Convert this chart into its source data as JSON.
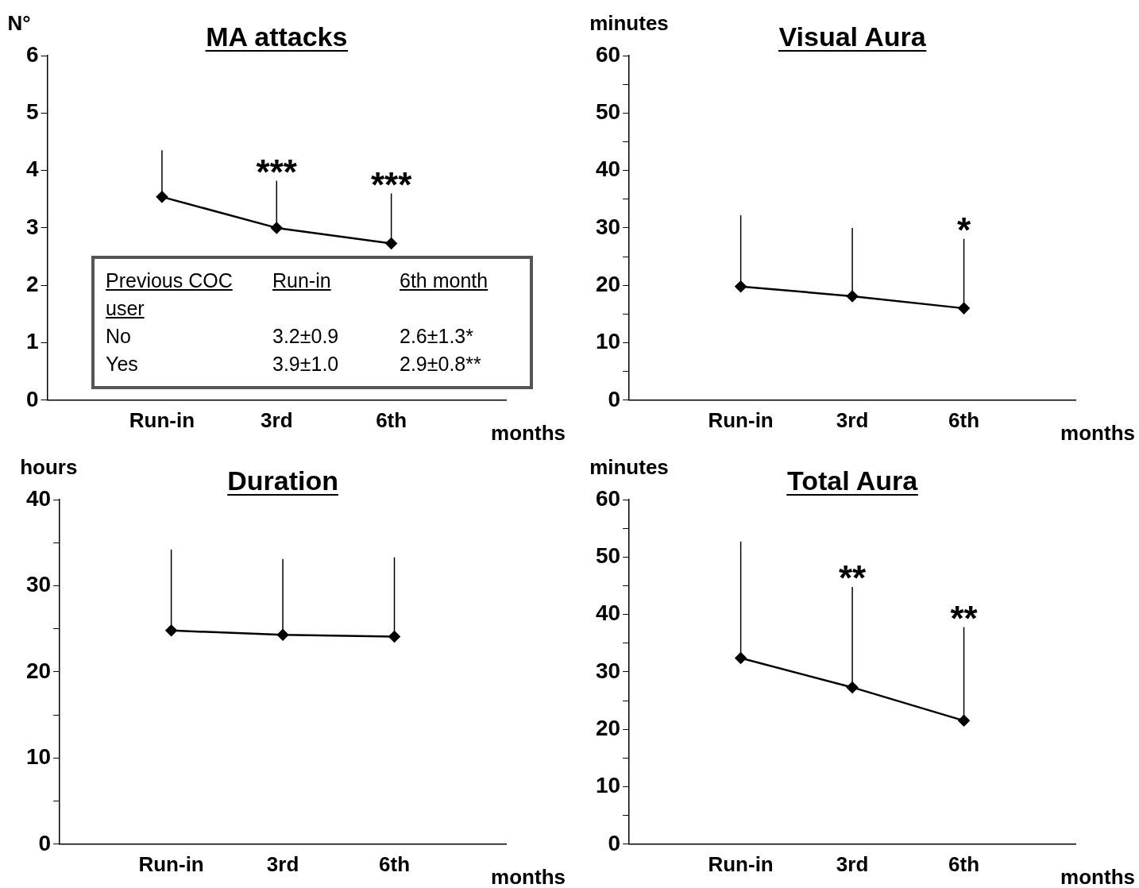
{
  "chart_data": [
    {
      "type": "line",
      "title": "MA attacks",
      "ylabel": "N°",
      "xlabel": "months",
      "categories": [
        "Run-in",
        "3rd",
        "6th"
      ],
      "series": [
        {
          "color": "#000000",
          "values": [
            3.54,
            3.0,
            2.73
          ],
          "errors": [
            [
              3.54,
              4.35
            ],
            [
              3.0,
              3.82
            ],
            [
              2.73,
              3.6
            ]
          ]
        }
      ],
      "ylim": [
        0,
        6
      ],
      "yticks": [
        0,
        1,
        2,
        3,
        4,
        5,
        6
      ],
      "grid": false,
      "legend": false,
      "marker": "diamond",
      "line_style": "solid",
      "annotations": [
        {
          "text": "***",
          "x": "3rd",
          "y": 3.82
        },
        {
          "text": "***",
          "x": "6th",
          "y": 3.6
        },
        "Previous COC user",
        "Run-in",
        "6th month",
        "No",
        "3.2±0.9",
        "2.6±1.3*",
        "Yes",
        "3.9±1.0",
        "2.9±0.8**"
      ]
    },
    {
      "type": "line",
      "title": "Visual Aura",
      "ylabel": "minutes",
      "xlabel": "months",
      "categories": [
        "Run-in",
        "3rd",
        "6th"
      ],
      "series": [
        {
          "color": "#000000",
          "values": [
            19.8,
            18.1,
            16.0
          ],
          "errors": [
            [
              19.8,
              32.2
            ],
            [
              18.1,
              30.0
            ],
            [
              16.0,
              28.1
            ]
          ]
        }
      ],
      "ylim": [
        0,
        60
      ],
      "yticks": [
        0,
        {
          "value": 5,
          "label": null
        },
        10,
        {
          "value": 15,
          "label": null
        },
        20,
        {
          "value": 25,
          "label": null
        },
        30,
        {
          "value": 35,
          "label": null
        },
        40,
        {
          "value": 45,
          "label": null
        },
        50,
        {
          "value": 55,
          "label": null
        },
        60
      ],
      "grid": false,
      "legend": false,
      "marker": "diamond",
      "line_style": "solid",
      "annotations": [
        {
          "text": "*",
          "x": "6th",
          "y": 28.1
        }
      ]
    },
    {
      "type": "line",
      "title": "Duration",
      "ylabel": "hours",
      "xlabel": "months",
      "categories": [
        "Run-in",
        "3rd",
        "6th"
      ],
      "series": [
        {
          "color": "#000000",
          "values": [
            24.8,
            24.3,
            24.1
          ],
          "errors": [
            [
              24.8,
              34.2
            ],
            [
              24.3,
              33.1
            ],
            [
              24.1,
              33.3
            ]
          ]
        }
      ],
      "ylim": [
        0,
        40
      ],
      "yticks": [
        0,
        {
          "value": 5,
          "label": null
        },
        10,
        {
          "value": 15,
          "label": null
        },
        20,
        {
          "value": 25,
          "label": null
        },
        30,
        {
          "value": 35,
          "label": null
        },
        40
      ],
      "grid": false,
      "legend": false,
      "marker": "diamond",
      "line_style": "solid"
    },
    {
      "type": "line",
      "title": "Total Aura",
      "ylabel": "minutes",
      "xlabel": "months",
      "categories": [
        "Run-in",
        "3rd",
        "6th"
      ],
      "series": [
        {
          "color": "#000000",
          "values": [
            32.4,
            27.3,
            21.5
          ],
          "errors": [
            [
              32.4,
              52.7
            ],
            [
              27.3,
              44.8
            ],
            [
              21.5,
              37.8
            ]
          ]
        }
      ],
      "ylim": [
        0,
        60
      ],
      "yticks": [
        0,
        {
          "value": 5,
          "label": null
        },
        10,
        {
          "value": 15,
          "label": null
        },
        20,
        {
          "value": 25,
          "label": null
        },
        30,
        {
          "value": 35,
          "label": null
        },
        40,
        {
          "value": 45,
          "label": null
        },
        50,
        {
          "value": 55,
          "label": null
        },
        60
      ],
      "grid": false,
      "legend": false,
      "marker": "diamond",
      "line_style": "solid",
      "annotations": [
        {
          "text": "**",
          "x": "3rd",
          "y": 44.8
        },
        {
          "text": "**",
          "x": "6th",
          "y": 37.8
        }
      ]
    }
  ]
}
